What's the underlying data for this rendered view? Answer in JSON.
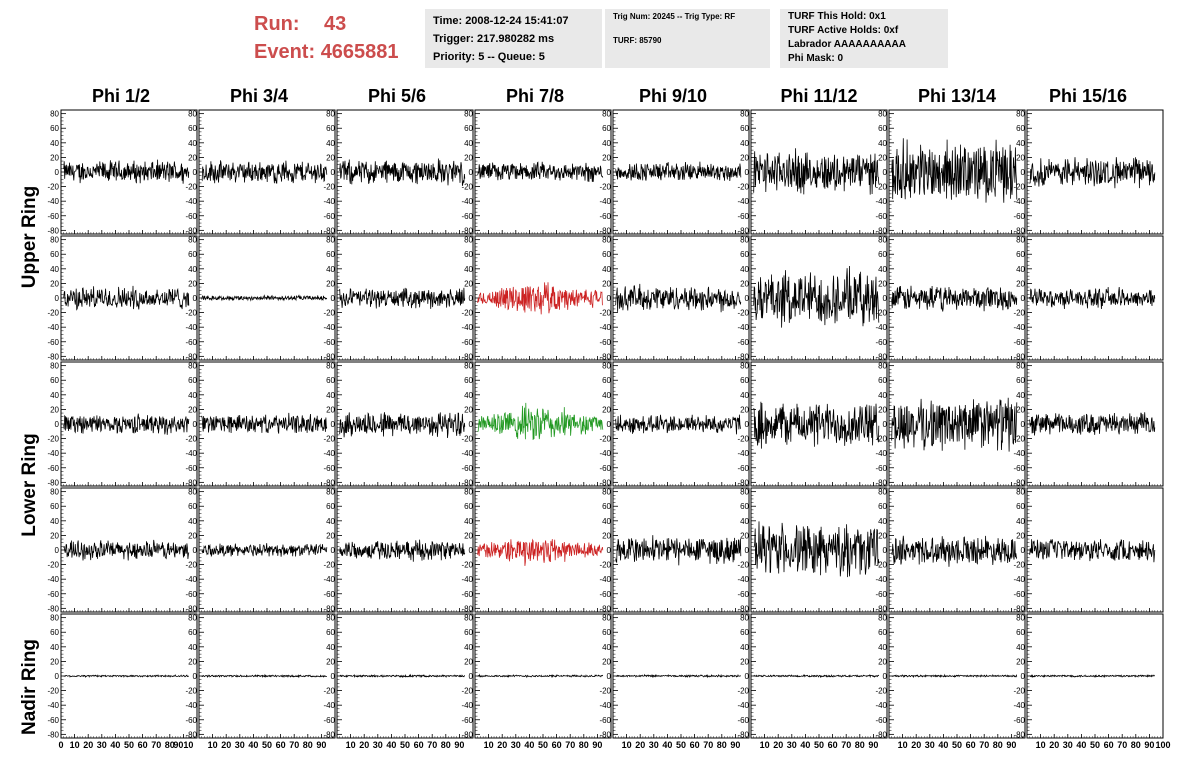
{
  "header": {
    "run_label": "Run:",
    "run_value": "43",
    "event_label": "Event:",
    "event_value": "4665881"
  },
  "info_time": {
    "time": "Time: 2008-12-24 15:41:07",
    "trigger": "Trigger: 217.980282 ms",
    "priority": "Priority: 5 -- Queue: 5"
  },
  "info_trig": {
    "trig_line": "Trig Num: 20245 -- Trig Type: RF",
    "turf_line": "TURF: 85790"
  },
  "info_turf": {
    "this_hold": "TURF This Hold: 0x1",
    "active_holds": "TURF Active Holds: 0xf",
    "labrador": "Labrador AAAAAAAAAA",
    "phi_mask": "Phi Mask: 0"
  },
  "colors": {
    "trace": "#000000",
    "trigger_red": "#cc2222",
    "trigger_green": "#229922",
    "header_red": "#cc4d4d",
    "info_bg": "#e9e9e9"
  },
  "chart_data": {
    "type": "line",
    "columns": [
      "Phi 1/2",
      "Phi 3/4",
      "Phi 5/6",
      "Phi 7/8",
      "Phi 9/10",
      "Phi 11/12",
      "Phi 13/14",
      "Phi 15/16"
    ],
    "row_labels": [
      {
        "text": "Upper Ring",
        "rows": [
          0,
          1
        ]
      },
      {
        "text": "Lower Ring",
        "rows": [
          2,
          3
        ]
      },
      {
        "text": "Nadir Ring",
        "rows": [
          4,
          4
        ]
      }
    ],
    "ylim": [
      -85,
      85
    ],
    "xlim": [
      0,
      100
    ],
    "y_ticks": [
      80,
      60,
      40,
      20,
      0,
      -20,
      -40,
      -60,
      -80
    ],
    "y_tick_labels": [
      "80",
      "60",
      "40",
      "20",
      "0",
      "-20",
      "-40",
      "-60",
      "-80"
    ],
    "x_ticks": [
      0,
      10,
      20,
      30,
      40,
      50,
      60,
      70,
      80,
      90
    ],
    "x_tick_labels": [
      "0",
      "10",
      "20",
      "30",
      "40",
      "50",
      "60",
      "70",
      "80",
      "90"
    ],
    "x_last_label": "100",
    "first_col_x_labels": [
      "0",
      "10",
      "20",
      "30",
      "40",
      "50",
      "60",
      "70",
      "80",
      "9010"
    ],
    "x_last_col_labels": [
      "10",
      "20",
      "30",
      "40",
      "50",
      "60",
      "70",
      "80",
      "90",
      "100"
    ],
    "amplitude_grid": [
      [
        14,
        14,
        16,
        12,
        12,
        26,
        38,
        18
      ],
      [
        14,
        3,
        12,
        16,
        16,
        34,
        16,
        12
      ],
      [
        12,
        12,
        16,
        18,
        12,
        28,
        34,
        14
      ],
      [
        12,
        8,
        12,
        14,
        18,
        32,
        18,
        14
      ],
      [
        1.2,
        1.2,
        1.2,
        1.2,
        1.2,
        1.2,
        1.2,
        1.2
      ]
    ],
    "highlight_grid": [
      [
        null,
        null,
        null,
        null,
        null,
        null,
        null,
        null
      ],
      [
        null,
        null,
        null,
        "red",
        null,
        null,
        null,
        null
      ],
      [
        null,
        null,
        null,
        "green",
        null,
        null,
        null,
        null
      ],
      [
        null,
        null,
        null,
        "red",
        null,
        null,
        null,
        null
      ],
      [
        null,
        null,
        null,
        null,
        null,
        null,
        null,
        null
      ]
    ]
  }
}
